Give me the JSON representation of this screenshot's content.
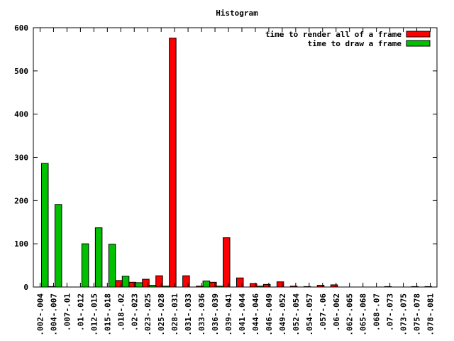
{
  "chart_data": {
    "type": "bar",
    "title": "Histogram",
    "xlabel": "",
    "ylabel": "",
    "ylim": [
      0,
      600
    ],
    "yticks": [
      0,
      100,
      200,
      300,
      400,
      500,
      600
    ],
    "grid": false,
    "legend_position": "top-right",
    "categories": [
      ".002-.004",
      ".004-.007",
      ".007-.01",
      ".01-.012",
      ".012-.015",
      ".015-.018",
      ".018-.02",
      ".02-.023",
      ".023-.025",
      ".025-.028",
      ".028-.031",
      ".031-.033",
      ".033-.036",
      ".036-.039",
      ".039-.041",
      ".041-.044",
      ".044-.046",
      ".046-.049",
      ".049-.052",
      ".052-.054",
      ".054-.057",
      ".057-.06",
      ".06-.062",
      ".062-.065",
      ".065-.068",
      ".068-.07",
      ".07-.073",
      ".073-.075",
      ".075-.078",
      ".078-.081"
    ],
    "series": [
      {
        "name": "time to render all of a frame",
        "color": "#ff0000",
        "values": [
          0,
          1,
          0,
          0,
          0,
          0,
          15,
          11,
          18,
          26,
          576,
          26,
          2,
          11,
          114,
          21,
          8,
          6,
          12,
          2,
          1,
          4,
          5,
          0,
          0,
          0,
          1,
          0,
          1,
          1
        ]
      },
      {
        "name": "time to draw a frame",
        "color": "#00c000",
        "values": [
          286,
          191,
          0,
          100,
          137,
          99,
          25,
          10,
          4,
          2,
          0,
          0,
          14,
          2,
          0,
          0,
          2,
          0,
          0,
          0,
          0,
          0,
          0,
          0,
          0,
          0,
          0,
          0,
          0,
          0
        ]
      }
    ]
  }
}
